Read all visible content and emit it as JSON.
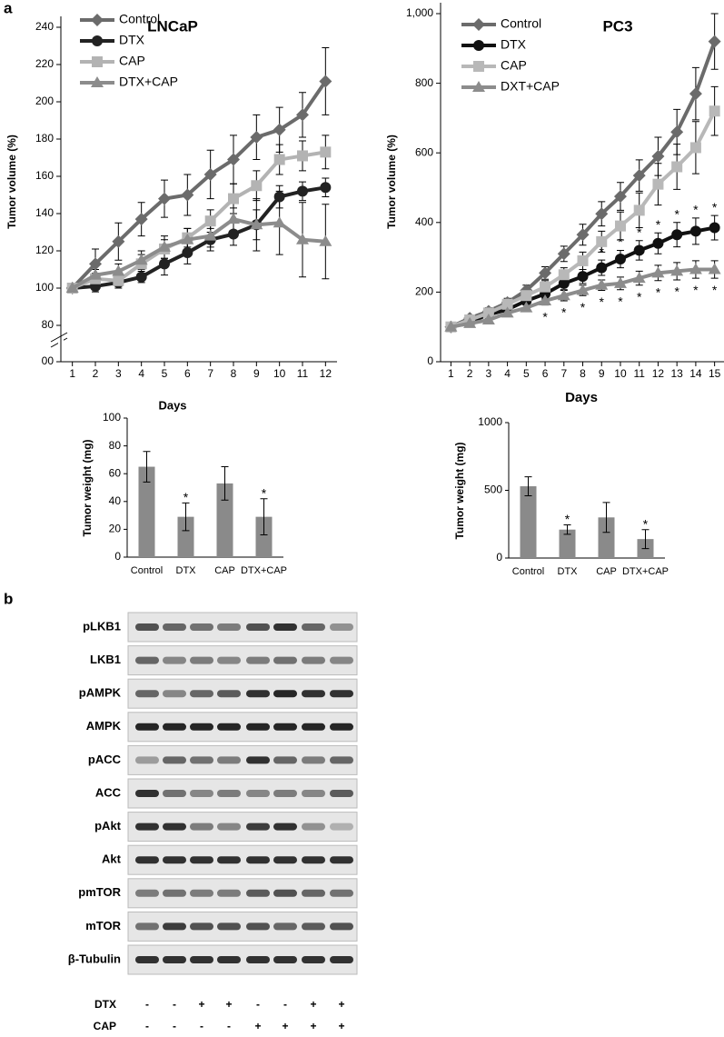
{
  "panel_labels": [
    "a",
    "b"
  ],
  "chart_data": [
    {
      "type": "line",
      "title": "LNCaP",
      "ylabel": "Tumor volume (%)",
      "xlabel": "Days",
      "x": [
        1,
        2,
        3,
        4,
        5,
        6,
        7,
        8,
        9,
        10,
        11,
        12
      ],
      "xlim": [
        0.5,
        12.5
      ],
      "ylim": [
        0,
        240
      ],
      "axis_break": true,
      "yticks": [
        {
          "value": 0,
          "label": "00"
        },
        80,
        100,
        120,
        140,
        160,
        180,
        200,
        220,
        240
      ],
      "legend": "upper left",
      "series": [
        {
          "name": "Control",
          "color": "#6b6b6b",
          "marker": "diamond",
          "values": [
            100,
            113,
            125,
            137,
            148,
            150,
            161,
            169,
            181,
            185,
            193,
            211
          ],
          "errors": [
            0,
            8,
            10,
            9,
            10,
            11,
            13,
            13,
            12,
            12,
            12,
            18
          ]
        },
        {
          "name": "DTX",
          "color": "#222222",
          "marker": "circle",
          "values": [
            100,
            101,
            103,
            106,
            113,
            119,
            126,
            129,
            134,
            149,
            152,
            154
          ],
          "errors": [
            2,
            3,
            3,
            3,
            6,
            6,
            6,
            6,
            8,
            6,
            5,
            5
          ]
        },
        {
          "name": "CAP",
          "color": "#b3b3b3",
          "marker": "square",
          "values": [
            100,
            105,
            104,
            113,
            121,
            127,
            136,
            148,
            155,
            169,
            171,
            173
          ],
          "errors": [
            2,
            3,
            3,
            5,
            5,
            5,
            6,
            8,
            8,
            8,
            8,
            9
          ]
        },
        {
          "name": "DTX+CAP",
          "color": "#8c8c8c",
          "marker": "triangle",
          "values": [
            100,
            107,
            109,
            115,
            122,
            126,
            128,
            137,
            134,
            135,
            126,
            125
          ],
          "errors": [
            2,
            3,
            4,
            5,
            6,
            6,
            6,
            6,
            14,
            17,
            20,
            20
          ]
        }
      ]
    },
    {
      "type": "line",
      "title": "PC3",
      "ylabel": "Tumor volume (%)",
      "xlabel": "Days",
      "x": [
        1,
        2,
        3,
        4,
        5,
        6,
        7,
        8,
        9,
        10,
        11,
        12,
        13,
        14,
        15
      ],
      "xlim": [
        0.45,
        15.5
      ],
      "ylim": [
        0,
        1000
      ],
      "yticks": [
        0,
        200,
        400,
        600,
        800,
        {
          "value": 1000,
          "label": "1,000"
        }
      ],
      "legend": "upper left",
      "series": [
        {
          "name": "Control",
          "color": "#6b6b6b",
          "marker": "diamond",
          "values": [
            100,
            125,
            145,
            170,
            205,
            255,
            310,
            365,
            425,
            475,
            535,
            590,
            660,
            770,
            920
          ],
          "errors": [
            5,
            8,
            10,
            12,
            15,
            18,
            22,
            30,
            35,
            40,
            45,
            55,
            65,
            75,
            80
          ]
        },
        {
          "name": "DTX",
          "color": "#111111",
          "marker": "circle",
          "values": [
            100,
            115,
            135,
            150,
            175,
            195,
            225,
            245,
            270,
            295,
            320,
            340,
            365,
            375,
            385
          ],
          "errors": [
            5,
            6,
            8,
            10,
            12,
            15,
            18,
            20,
            22,
            25,
            28,
            30,
            35,
            38,
            35
          ]
        },
        {
          "name": "CAP",
          "color": "#b8b8b8",
          "marker": "square",
          "values": [
            100,
            120,
            140,
            165,
            190,
            215,
            250,
            290,
            345,
            390,
            435,
            510,
            560,
            615,
            720
          ],
          "errors": [
            5,
            8,
            10,
            12,
            15,
            18,
            20,
            25,
            30,
            40,
            50,
            60,
            65,
            75,
            70
          ]
        },
        {
          "name": "DXT+CAP",
          "color": "#8c8c8c",
          "marker": "triangle",
          "values": [
            100,
            110,
            120,
            140,
            155,
            175,
            190,
            205,
            220,
            225,
            240,
            255,
            260,
            265,
            265
          ],
          "errors": [
            5,
            5,
            8,
            10,
            10,
            12,
            15,
            15,
            15,
            18,
            20,
            22,
            25,
            25,
            25
          ]
        }
      ],
      "annotations": [
        {
          "text": "*",
          "series": "DTX",
          "position": "above",
          "x": [
            9,
            10,
            11,
            12,
            13,
            14,
            15
          ]
        },
        {
          "text": "*",
          "series": "DXT+CAP",
          "position": "below",
          "x": [
            6,
            7,
            8,
            9,
            10,
            11,
            12,
            13,
            14,
            15
          ]
        }
      ]
    },
    {
      "type": "bar",
      "ylabel": "Tumor weight (mg)",
      "categories": [
        "Control",
        "DTX",
        "CAP",
        "DTX+CAP"
      ],
      "values": [
        65,
        29,
        53,
        29
      ],
      "errors": [
        11,
        10,
        12,
        13
      ],
      "color": "#8a8a8a",
      "ylim": [
        0,
        100
      ],
      "yticks": [
        0,
        20,
        40,
        60,
        80,
        100
      ],
      "annotations": [
        {
          "text": "*",
          "categories": [
            "DTX",
            "DTX+CAP"
          ]
        }
      ]
    },
    {
      "type": "bar",
      "ylabel": "Tumor weight (mg)",
      "categories": [
        "Control",
        "DTX",
        "CAP",
        "DTX+CAP"
      ],
      "values": [
        530,
        210,
        300,
        140
      ],
      "errors": [
        70,
        35,
        110,
        70
      ],
      "color": "#8a8a8a",
      "ylim": [
        0,
        1000
      ],
      "yticks": [
        0,
        500,
        1000
      ],
      "annotations": [
        {
          "text": "*",
          "categories": [
            "DTX",
            "DTX+CAP"
          ]
        }
      ]
    }
  ],
  "blot": {
    "proteins": [
      "pLKB1",
      "LKB1",
      "pAMPK",
      "AMPK",
      "pACC",
      "ACC",
      "pAkt",
      "Akt",
      "pmTOR",
      "mTOR",
      "β-Tubulin"
    ],
    "treatments": [
      {
        "name": "DTX",
        "lanes": [
          "-",
          "-",
          "+",
          "+",
          "-",
          "-",
          "+",
          "+"
        ]
      },
      {
        "name": "CAP",
        "lanes": [
          "-",
          "-",
          "-",
          "-",
          "+",
          "+",
          "+",
          "+"
        ]
      }
    ]
  }
}
